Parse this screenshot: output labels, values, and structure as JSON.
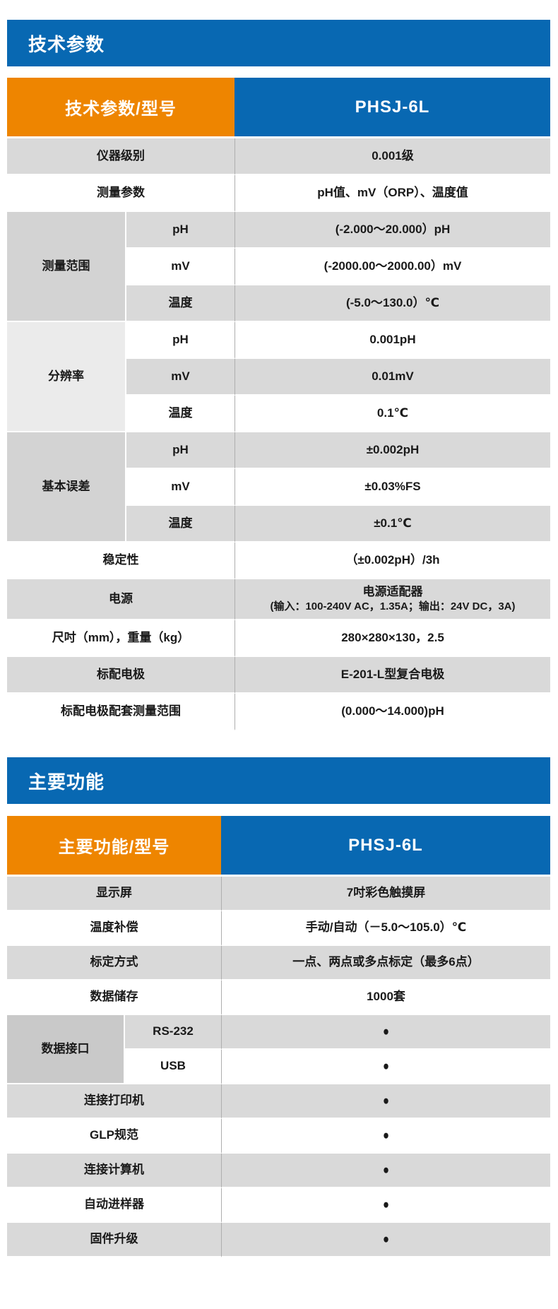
{
  "colors": {
    "accent_blue": "#0868b2",
    "accent_orange": "#ee8500",
    "row_gray": "#d9d9d9",
    "row_white": "#ffffff",
    "group_cell_mid": "#d3d3d3",
    "group_cell_light": "#ebebeb",
    "group_cell_dark": "#c9c9c9",
    "divider_line": "#aeaeae",
    "text": "#1a1a1a"
  },
  "bullet_icon": "●",
  "sections": [
    {
      "title": "技术参数",
      "table": {
        "header_left": "技术参数/型号",
        "header_right": "PHSJ-6L",
        "rows": [
          {
            "label": "仪器级别",
            "value": "0.001级",
            "shade": "gray"
          },
          {
            "label": "测量参数",
            "value": "pH值、mV（ORP）、温度值",
            "shade": "white"
          },
          {
            "group": "测量范围",
            "group_shade": "cat-mid",
            "subs": [
              {
                "label": "pH",
                "value": "(-2.000～20.000）pH",
                "shade": "gray"
              },
              {
                "label": "mV",
                "value": "(-2000.00～2000.00）mV",
                "shade": "white"
              },
              {
                "label": "温度",
                "value": "(-5.0～130.0）℃",
                "shade": "gray"
              }
            ]
          },
          {
            "group": "分辨率",
            "group_shade": "cat-light",
            "subs": [
              {
                "label": "pH",
                "value": "0.001pH",
                "shade": "white"
              },
              {
                "label": "mV",
                "value": "0.01mV",
                "shade": "gray"
              },
              {
                "label": "温度",
                "value": "0.1℃",
                "shade": "white"
              }
            ]
          },
          {
            "group": "基本误差",
            "group_shade": "cat-mid",
            "subs": [
              {
                "label": "pH",
                "value": "±0.002pH",
                "shade": "gray"
              },
              {
                "label": "mV",
                "value": "±0.03%FS",
                "shade": "white"
              },
              {
                "label": "温度",
                "value": "±0.1℃",
                "shade": "gray"
              }
            ]
          },
          {
            "label": "稳定性",
            "value": "（±0.002pH）/3h",
            "shade": "white"
          },
          {
            "label": "电源",
            "value_lines": [
              "电源适配器",
              "(输入：100-240V AC，1.35A；输出：24V DC，3A)"
            ],
            "shade": "gray",
            "tall": true
          },
          {
            "label": "尺吋（mm），重量（kg）",
            "value": "280×280×130，2.5",
            "shade": "white"
          },
          {
            "label": "标配电极",
            "value": "E-201-L型复合电极",
            "shade": "gray"
          },
          {
            "label": "标配电极配套测量范围",
            "value": "(0.000～14.000)pH",
            "shade": "white"
          }
        ]
      }
    },
    {
      "title": "主要功能",
      "table": {
        "header_left": "主要功能/型号",
        "header_right": "PHSJ-6L",
        "rows": [
          {
            "label": "显示屏",
            "value": "7吋彩色触摸屏",
            "shade": "gray"
          },
          {
            "label": "温度补偿",
            "value": "手动/自动（－5.0～105.0）℃",
            "shade": "white"
          },
          {
            "label": "标定方式",
            "value": "一点、两点或多点标定（最多6点）",
            "shade": "gray"
          },
          {
            "label": "数据储存",
            "value": "1000套",
            "shade": "white"
          },
          {
            "group": "数据接口",
            "group_shade": "cat-dark",
            "subs": [
              {
                "label": "RS-232",
                "value": "●",
                "shade": "gray",
                "bullet": true
              },
              {
                "label": "USB",
                "value": "●",
                "shade": "white",
                "bullet": true
              }
            ]
          },
          {
            "label": "连接打印机",
            "value": "●",
            "shade": "gray",
            "bullet": true
          },
          {
            "label": "GLP规范",
            "value": "●",
            "shade": "white",
            "bullet": true
          },
          {
            "label": "连接计算机",
            "value": "●",
            "shade": "gray",
            "bullet": true
          },
          {
            "label": "自动进样器",
            "value": "●",
            "shade": "white",
            "bullet": true
          },
          {
            "label": "固件升级",
            "value": "●",
            "shade": "gray",
            "bullet": true
          }
        ]
      }
    }
  ]
}
